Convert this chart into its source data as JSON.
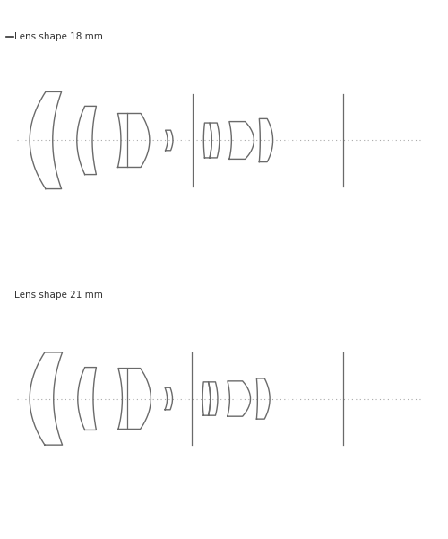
{
  "title_18": "Lens shape 18 mm",
  "title_21": "Lens shape 21 mm",
  "line_color": "#6a6a6a",
  "dot_line_color": "#aaaaaa",
  "text_color": "#333333",
  "bg_color": "#ffffff",
  "title_fontsize": 7.5,
  "fig_width": 5.0,
  "fig_height": 6.01
}
